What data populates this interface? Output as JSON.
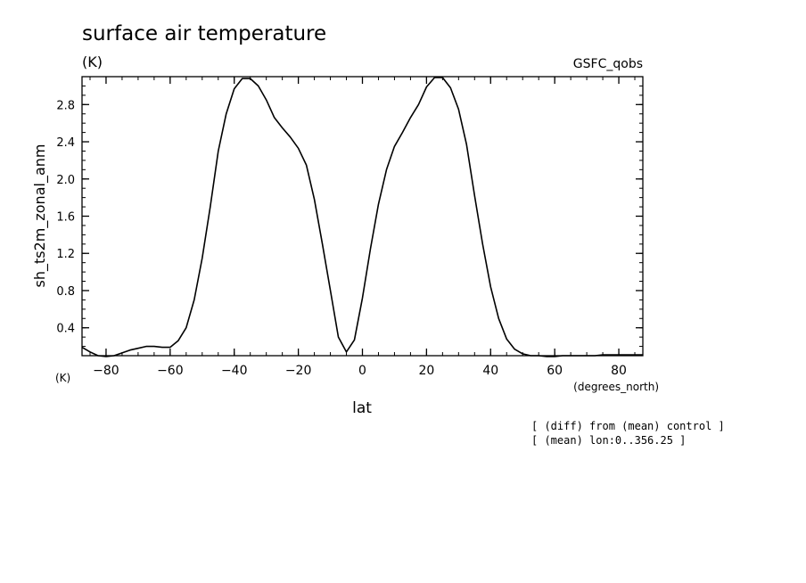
{
  "chart_data": {
    "type": "line",
    "title": "surface air temperature",
    "units_label": "(K)",
    "dataset_label": "GSFC_qobs",
    "ylabel": "sh_ts2m_zonal_anm",
    "y_unit_label": "(K)",
    "xlabel": "lat",
    "x_unit_label": "(degrees_north)",
    "xlim": [
      -87.5,
      87.5
    ],
    "ylim": [
      0.1,
      3.1
    ],
    "x_ticks": [
      -80,
      -60,
      -40,
      -20,
      0,
      20,
      40,
      60,
      80
    ],
    "y_ticks": [
      0.4,
      0.8,
      1.2,
      1.6,
      2.0,
      2.4,
      2.8
    ],
    "x_tick_labels": [
      "−80",
      "−60",
      "−40",
      "−20",
      "0",
      "20",
      "40",
      "60",
      "80"
    ],
    "y_tick_labels": [
      "0.4",
      "0.8",
      "1.2",
      "1.6",
      "2.0",
      "2.4",
      "2.8"
    ],
    "grid": false,
    "series": [
      {
        "x": [
          -87.5,
          -85,
          -82.5,
          -80,
          -77.5,
          -75,
          -72.5,
          -70,
          -67.5,
          -65,
          -62.5,
          -60,
          -57.5,
          -55,
          -52.5,
          -50,
          -47.5,
          -45,
          -42.5,
          -40,
          -37.5,
          -35,
          -32.5,
          -30,
          -27.5,
          -25,
          -22.5,
          -20,
          -17.5,
          -15,
          -12.5,
          -10,
          -7.5,
          -5,
          -2.5,
          0,
          2.5,
          5,
          7.5,
          10,
          12.5,
          15,
          17.5,
          20,
          22.5,
          25,
          27.5,
          30,
          32.5,
          35,
          37.5,
          40,
          42.5,
          45,
          47.5,
          50,
          52.5,
          55,
          57.5,
          60,
          62.5,
          65,
          67.5,
          70,
          72.5,
          75,
          77.5,
          80,
          82.5,
          85,
          87.5
        ],
        "y": [
          0.19,
          0.14,
          0.1,
          0.09,
          0.1,
          0.13,
          0.16,
          0.18,
          0.2,
          0.2,
          0.19,
          0.19,
          0.26,
          0.4,
          0.7,
          1.15,
          1.7,
          2.3,
          2.7,
          2.97,
          3.08,
          3.08,
          3.0,
          2.85,
          2.66,
          2.55,
          2.45,
          2.33,
          2.15,
          1.78,
          1.3,
          0.8,
          0.3,
          0.14,
          0.27,
          0.72,
          1.25,
          1.73,
          2.1,
          2.35,
          2.5,
          2.66,
          2.8,
          2.99,
          3.09,
          3.09,
          2.98,
          2.75,
          2.37,
          1.82,
          1.3,
          0.84,
          0.5,
          0.28,
          0.17,
          0.12,
          0.1,
          0.1,
          0.09,
          0.09,
          0.1,
          0.1,
          0.1,
          0.1,
          0.1,
          0.11,
          0.11,
          0.11,
          0.11,
          0.11,
          0.11
        ]
      }
    ]
  },
  "notes": {
    "line1": "[ (diff) from (mean) control ]",
    "line2": "[ (mean) lon:0..356.25 ]"
  }
}
